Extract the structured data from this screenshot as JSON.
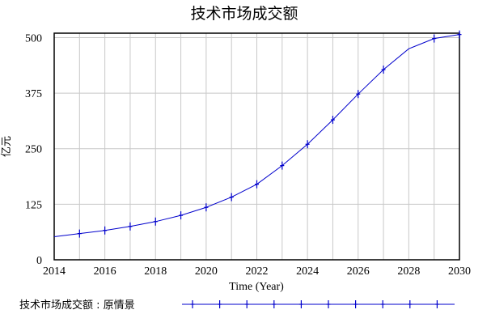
{
  "chart_data": {
    "type": "line",
    "title": "技术市场成交额",
    "xlabel": "Time (Year)",
    "ylabel": "亿元",
    "xlim": [
      2014,
      2030
    ],
    "ylim": [
      0,
      510
    ],
    "x_ticks": [
      2014,
      2016,
      2018,
      2020,
      2022,
      2024,
      2026,
      2028,
      2030
    ],
    "y_ticks": [
      0,
      125,
      250,
      375,
      500
    ],
    "grid": true,
    "legend_position": "bottom",
    "series": [
      {
        "name": "技术市场成交额 : 原情景",
        "color": "#0000cc",
        "marker": "cross",
        "x": [
          2014,
          2015,
          2016,
          2017,
          2018,
          2019,
          2020,
          2021,
          2022,
          2023,
          2024,
          2025,
          2026,
          2027,
          2028,
          2029,
          2030
        ],
        "y": [
          52,
          59,
          66,
          75,
          86,
          100,
          118,
          141,
          170,
          212,
          260,
          315,
          373,
          428,
          475,
          498,
          507
        ],
        "marker_x": [
          2015,
          2016,
          2017,
          2018,
          2019,
          2020,
          2021,
          2022,
          2023,
          2024,
          2025,
          2026,
          2027,
          2029,
          2030
        ]
      }
    ]
  }
}
